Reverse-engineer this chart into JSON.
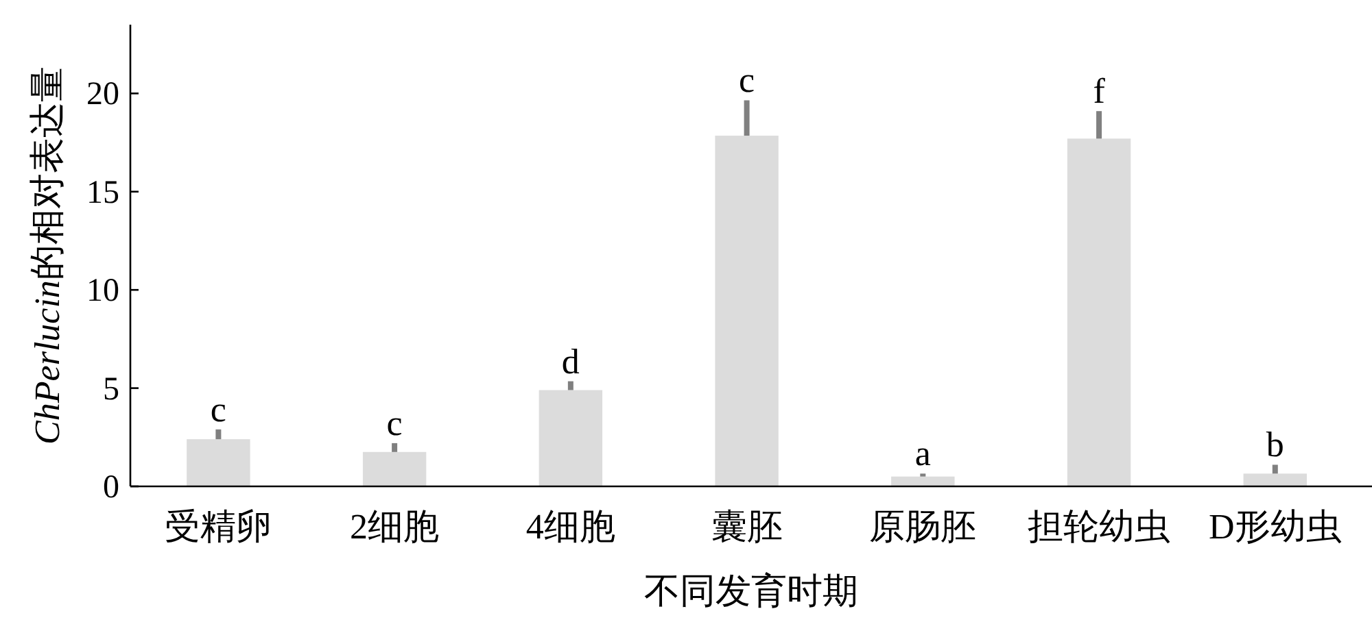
{
  "chart_data": {
    "type": "bar",
    "xlabel": "不同发育时期",
    "ylabel": "ChPerlucin的相对表达量",
    "categories": [
      "受精卵",
      "2细胞",
      "4细胞",
      "囊胚",
      "原肠胚",
      "担轮幼虫",
      "D形幼虫"
    ],
    "values": [
      2.4,
      1.75,
      4.9,
      17.85,
      0.5,
      17.7,
      0.65
    ],
    "errors": [
      [
        2.4,
        2.9
      ],
      [
        1.75,
        2.2
      ],
      [
        4.9,
        5.35
      ],
      [
        17.85,
        19.65
      ],
      [
        0.5,
        0.65
      ],
      [
        17.7,
        19.1
      ],
      [
        0.65,
        1.1
      ]
    ],
    "color": "#dcdcdc",
    "ylim": [
      0,
      23.5
    ],
    "yticks": [
      0,
      5,
      10,
      15,
      20
    ],
    "grid": false,
    "annotations": [
      {
        "text": "c",
        "x": "受精卵",
        "y": 2.9
      },
      {
        "text": "c",
        "x": "2细胞",
        "y": 2.2
      },
      {
        "text": "d",
        "x": "4细胞",
        "y": 5.35
      },
      {
        "text": "c",
        "x": "囊胚",
        "y": 19.65
      },
      {
        "text": "a",
        "x": "原肠胚",
        "y": 0.65
      },
      {
        "text": "f",
        "x": "担轮幼虫",
        "y": 19.1
      },
      {
        "text": "b",
        "x": "D形幼虫",
        "y": 1.1
      }
    ]
  }
}
